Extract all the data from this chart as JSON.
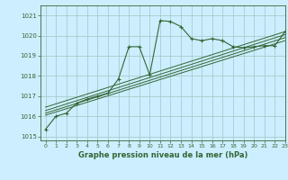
{
  "title": "Graphe pression niveau de la mer (hPa)",
  "bg_color": "#cceeff",
  "grid_color": "#aacccc",
  "line_color": "#336633",
  "ylim": [
    1014.8,
    1021.5
  ],
  "xlim": [
    -0.5,
    23
  ],
  "yticks": [
    1015,
    1016,
    1017,
    1018,
    1019,
    1020,
    1021
  ],
  "xticks": [
    0,
    1,
    2,
    3,
    4,
    5,
    6,
    7,
    8,
    9,
    10,
    11,
    12,
    13,
    14,
    15,
    16,
    17,
    18,
    19,
    20,
    21,
    22,
    23
  ],
  "main_series": [
    [
      0,
      1015.35
    ],
    [
      1,
      1016.0
    ],
    [
      2,
      1016.15
    ],
    [
      3,
      1016.65
    ],
    [
      4,
      1016.85
    ],
    [
      5,
      1017.0
    ],
    [
      6,
      1017.15
    ],
    [
      7,
      1017.85
    ],
    [
      8,
      1019.45
    ],
    [
      9,
      1019.45
    ],
    [
      10,
      1018.05
    ],
    [
      11,
      1020.75
    ],
    [
      12,
      1020.7
    ],
    [
      13,
      1020.45
    ],
    [
      14,
      1019.85
    ],
    [
      15,
      1019.75
    ],
    [
      16,
      1019.85
    ],
    [
      17,
      1019.75
    ],
    [
      18,
      1019.45
    ],
    [
      19,
      1019.4
    ],
    [
      20,
      1019.45
    ],
    [
      21,
      1019.5
    ],
    [
      22,
      1019.5
    ],
    [
      23,
      1020.2
    ]
  ],
  "trend_lines": [
    [
      [
        0,
        1016.05
      ],
      [
        23,
        1019.75
      ]
    ],
    [
      [
        0,
        1016.15
      ],
      [
        23,
        1019.9
      ]
    ],
    [
      [
        0,
        1016.28
      ],
      [
        23,
        1020.05
      ]
    ],
    [
      [
        0,
        1016.45
      ],
      [
        23,
        1020.2
      ]
    ]
  ]
}
